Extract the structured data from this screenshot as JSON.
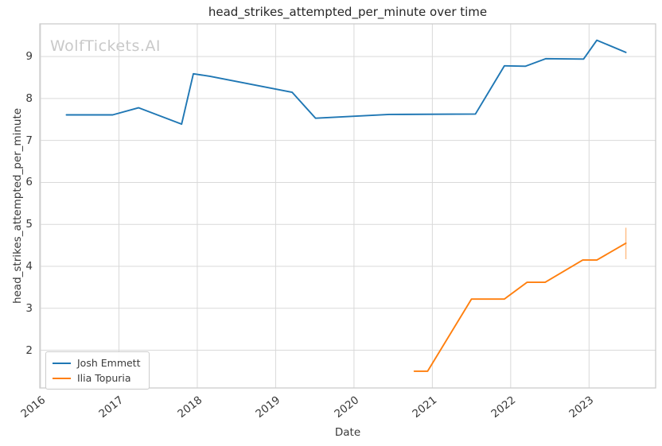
{
  "figure": {
    "watermark": "WolfTickets.AI",
    "background_color": "#ffffff",
    "text_color": "#3a3a3a",
    "watermark_color": "#c9c9c9"
  },
  "chart_data": {
    "type": "line",
    "title": "head_strikes_attempted_per_minute over time",
    "xlabel": "Date",
    "ylabel": "head_strikes_attempted_per_minute",
    "x_ticks": [
      2016,
      2017,
      2018,
      2019,
      2020,
      2021,
      2022,
      2023
    ],
    "y_ticks": [
      2,
      3,
      4,
      5,
      6,
      7,
      8,
      9
    ],
    "xlim": [
      2015.99,
      2023.85
    ],
    "ylim": [
      1.1,
      9.78
    ],
    "grid": true,
    "grid_color": "#d9d9d9",
    "spine_color": "#cccccc",
    "legend": {
      "position": "lower left"
    },
    "series": [
      {
        "name": "Josh Emmett",
        "color": "#1f77b4",
        "points": [
          [
            2016.33,
            7.61
          ],
          [
            2016.92,
            7.61
          ],
          [
            2017.25,
            7.78
          ],
          [
            2017.8,
            7.39
          ],
          [
            2017.95,
            8.59
          ],
          [
            2018.16,
            8.53
          ],
          [
            2019.21,
            8.15
          ],
          [
            2019.51,
            7.53
          ],
          [
            2020.45,
            7.62
          ],
          [
            2021.55,
            7.63
          ],
          [
            2021.92,
            8.78
          ],
          [
            2022.19,
            8.77
          ],
          [
            2022.45,
            8.95
          ],
          [
            2022.93,
            8.94
          ],
          [
            2023.1,
            9.39
          ],
          [
            2023.47,
            9.1
          ]
        ]
      },
      {
        "name": "Ilia Topuria",
        "color": "#ff7f0e",
        "points": [
          [
            2020.77,
            1.5
          ],
          [
            2020.94,
            1.5
          ],
          [
            2021.5,
            3.22
          ],
          [
            2021.92,
            3.22
          ],
          [
            2022.21,
            3.62
          ],
          [
            2022.44,
            3.62
          ],
          [
            2022.92,
            4.15
          ],
          [
            2023.1,
            4.15
          ],
          [
            2023.47,
            4.55
          ]
        ],
        "last_point_error_bar": {
          "low": 4.17,
          "high": 4.92,
          "color": "#ffc08a"
        }
      }
    ]
  }
}
